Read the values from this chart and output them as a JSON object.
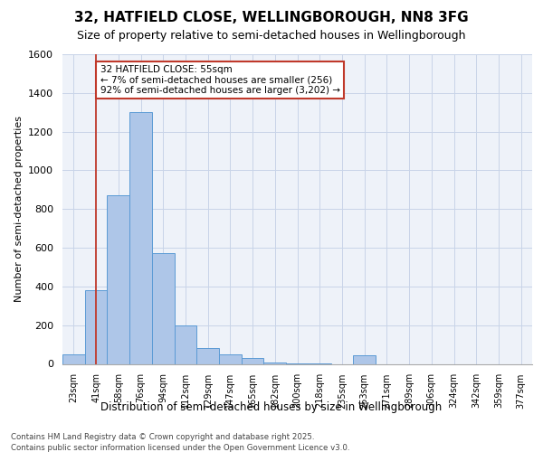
{
  "title_line1": "32, HATFIELD CLOSE, WELLINGBOROUGH, NN8 3FG",
  "title_line2": "Size of property relative to semi-detached houses in Wellingborough",
  "xlabel": "Distribution of semi-detached houses by size in Wellingborough",
  "ylabel": "Number of semi-detached properties",
  "bins": [
    "23sqm",
    "41sqm",
    "58sqm",
    "76sqm",
    "94sqm",
    "112sqm",
    "129sqm",
    "147sqm",
    "165sqm",
    "182sqm",
    "200sqm",
    "218sqm",
    "235sqm",
    "253sqm",
    "271sqm",
    "289sqm",
    "306sqm",
    "324sqm",
    "342sqm",
    "359sqm",
    "377sqm"
  ],
  "values": [
    50,
    380,
    870,
    1300,
    570,
    200,
    80,
    50,
    30,
    5,
    2,
    1,
    0,
    45,
    0,
    0,
    0,
    0,
    0,
    0,
    0
  ],
  "bar_color": "#aec6e8",
  "bar_edge_color": "#5b9bd5",
  "property_label": "32 HATFIELD CLOSE: 55sqm",
  "pct_smaller": 7,
  "count_smaller": 256,
  "pct_larger": 92,
  "count_larger": 3202,
  "vline_color": "#c0392b",
  "vline_x": 1.0,
  "annotation_box_color": "#c0392b",
  "ylim": [
    0,
    1600
  ],
  "yticks": [
    0,
    200,
    400,
    600,
    800,
    1000,
    1200,
    1400,
    1600
  ],
  "footer_line1": "Contains HM Land Registry data © Crown copyright and database right 2025.",
  "footer_line2": "Contains public sector information licensed under the Open Government Licence v3.0.",
  "bg_color": "#eef2f9",
  "grid_color": "#c8d4e8"
}
